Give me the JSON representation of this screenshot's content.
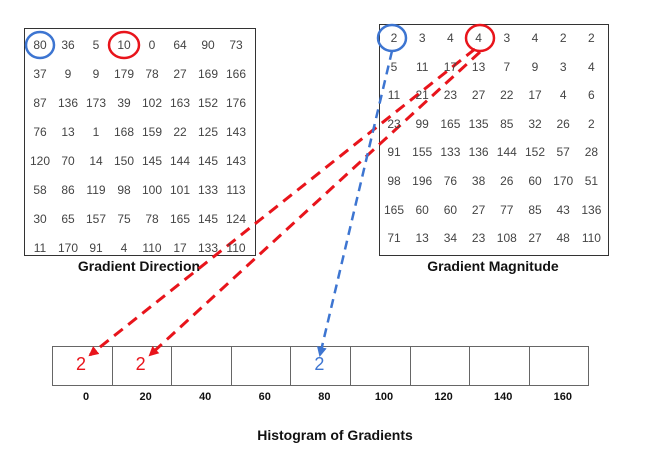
{
  "direction": {
    "caption": "Gradient Direction",
    "rows": [
      [
        80,
        36,
        5,
        10,
        0,
        64,
        90,
        73
      ],
      [
        37,
        9,
        9,
        179,
        78,
        27,
        169,
        166
      ],
      [
        87,
        136,
        173,
        39,
        102,
        163,
        152,
        176
      ],
      [
        76,
        13,
        1,
        168,
        159,
        22,
        125,
        143
      ],
      [
        120,
        70,
        14,
        150,
        145,
        144,
        145,
        143
      ],
      [
        58,
        86,
        119,
        98,
        100,
        101,
        133,
        113
      ],
      [
        30,
        65,
        157,
        75,
        78,
        165,
        145,
        124
      ],
      [
        11,
        170,
        91,
        4,
        110,
        17,
        133,
        110
      ]
    ]
  },
  "magnitude": {
    "caption": "Gradient Magnitude",
    "rows": [
      [
        2,
        3,
        4,
        4,
        3,
        4,
        2,
        2
      ],
      [
        5,
        11,
        17,
        13,
        7,
        9,
        3,
        4
      ],
      [
        11,
        21,
        23,
        27,
        22,
        17,
        4,
        6
      ],
      [
        23,
        99,
        165,
        135,
        85,
        32,
        26,
        2
      ],
      [
        91,
        155,
        133,
        136,
        144,
        152,
        57,
        28
      ],
      [
        98,
        196,
        76,
        38,
        26,
        60,
        170,
        51
      ],
      [
        165,
        60,
        60,
        27,
        77,
        85,
        43,
        136
      ],
      [
        71,
        13,
        34,
        23,
        108,
        27,
        48,
        110
      ]
    ]
  },
  "histogram": {
    "title": "Histogram of Gradients",
    "bins": [
      "0",
      "20",
      "40",
      "60",
      "80",
      "100",
      "120",
      "140",
      "160"
    ],
    "values": [
      "2",
      "2",
      "",
      "",
      "2",
      "",
      "",
      "",
      ""
    ]
  },
  "colors": {
    "red": "#e8141b",
    "blue": "#3d75d1"
  }
}
